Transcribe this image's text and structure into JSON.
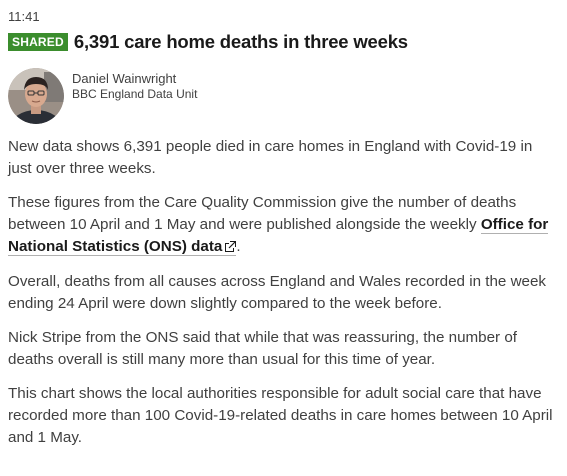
{
  "post": {
    "time": "11:41",
    "badge": "SHARED",
    "headline": "6,391 care home deaths in three weeks",
    "author": {
      "name": "Daniel Wainwright",
      "role": "BBC England Data Unit"
    },
    "paragraphs": {
      "p1": "New data shows 6,391 people died in care homes in England with Covid-19 in just over three weeks.",
      "p2_before": "These figures from the Care Quality Commission give the number of deaths between 10 April and 1 May and were published alongside the weekly ",
      "p2_link": "Office for National Statistics (ONS) data",
      "p2_after": ".",
      "p3": "Overall, deaths from all causes across England and Wales recorded in the week ending 24 April were down slightly compared to the week before.",
      "p4": "Nick Stripe from the ONS said that while that was reassuring, the number of deaths overall is still many more than usual for this time of year.",
      "p5": "This chart shows the local authorities responsible for adult social care that have recorded more than 100 Covid-19-related deaths in care homes between 10 April and 1 May."
    }
  },
  "colors": {
    "badge_bg": "#3b8d2d",
    "headline": "#1a1a1a",
    "body_text": "#404040"
  },
  "icons": {
    "external_link": "external-link-icon"
  }
}
